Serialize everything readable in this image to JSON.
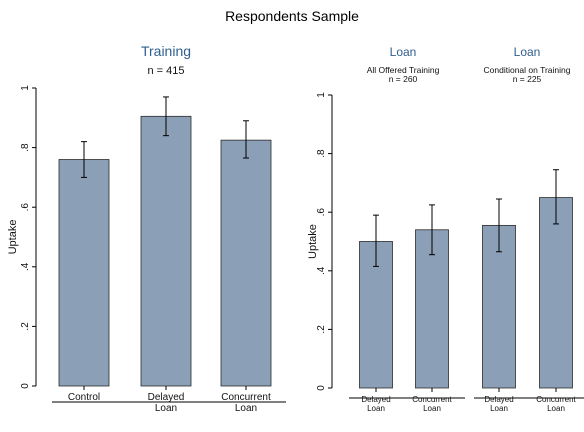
{
  "figure_title": "Respondents Sample",
  "colors": {
    "bar_fill": "#8ba0b6",
    "bar_stroke": "#2b2b2b",
    "axis": "#000000",
    "panel_title": "#2f5f8f",
    "text": "#111111"
  },
  "chart_data": [
    {
      "type": "bar",
      "title": "Training",
      "subtitle": "n = 415",
      "ylabel": "Uptake",
      "ylim": [
        0,
        1
      ],
      "yticks": [
        0,
        0.2,
        0.4,
        0.6,
        0.8,
        1
      ],
      "ytick_labels": [
        "0",
        ".2",
        ".4",
        ".6",
        ".8",
        "1"
      ],
      "categories": [
        [
          "Control"
        ],
        [
          "Delayed",
          "Loan"
        ],
        [
          "Concurrent",
          "Loan"
        ]
      ],
      "values": [
        0.76,
        0.905,
        0.825
      ],
      "ci": [
        [
          0.7,
          0.82
        ],
        [
          0.84,
          0.97
        ],
        [
          0.765,
          0.89
        ]
      ]
    },
    {
      "type": "bar",
      "ylabel": "Uptake",
      "ylim": [
        0,
        1
      ],
      "yticks": [
        0,
        0.2,
        0.4,
        0.6,
        0.8,
        1
      ],
      "ytick_labels": [
        "0",
        ".2",
        ".4",
        ".6",
        ".8",
        "1"
      ],
      "groups": [
        {
          "title": "Loan",
          "subtitle": [
            "All Offered Training",
            "n = 260"
          ],
          "categories": [
            [
              "Delayed",
              "Loan"
            ],
            [
              "Concurrent",
              "Loan"
            ]
          ],
          "values": [
            0.5,
            0.54
          ],
          "ci": [
            [
              0.415,
              0.59
            ],
            [
              0.455,
              0.625
            ]
          ]
        },
        {
          "title": "Loan",
          "subtitle": [
            "Conditional on Training",
            "n = 225"
          ],
          "categories": [
            [
              "Delayed",
              "Loan"
            ],
            [
              "Concurrent",
              "Loan"
            ]
          ],
          "values": [
            0.555,
            0.65
          ],
          "ci": [
            [
              0.465,
              0.645
            ],
            [
              0.56,
              0.745
            ]
          ]
        }
      ]
    }
  ]
}
